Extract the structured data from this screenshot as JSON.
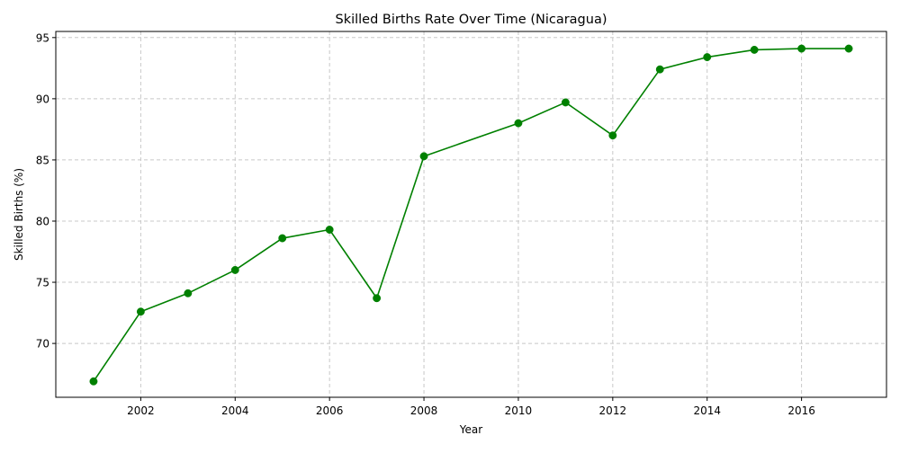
{
  "chart_data": {
    "type": "line",
    "title": "Skilled Births Rate Over Time (Nicaragua)",
    "xlabel": "Year",
    "ylabel": "Skilled Births (%)",
    "x_ticks": [
      2002,
      2004,
      2006,
      2008,
      2010,
      2012,
      2014,
      2016
    ],
    "y_ticks": [
      70,
      75,
      80,
      85,
      90,
      95
    ],
    "xlim": [
      2000.2,
      2017.8
    ],
    "ylim": [
      65.6,
      95.5
    ],
    "grid": true,
    "series": [
      {
        "color": "#008000",
        "marker": "circle",
        "x": [
          2001,
          2002,
          2003,
          2004,
          2005,
          2006,
          2007,
          2008,
          2010,
          2011,
          2012,
          2013,
          2014,
          2015,
          2016,
          2017
        ],
        "y": [
          66.9,
          72.6,
          74.1,
          76.0,
          78.6,
          79.3,
          73.7,
          85.3,
          88.0,
          89.7,
          87.0,
          92.4,
          93.4,
          94.0,
          94.1,
          94.1
        ]
      }
    ]
  }
}
